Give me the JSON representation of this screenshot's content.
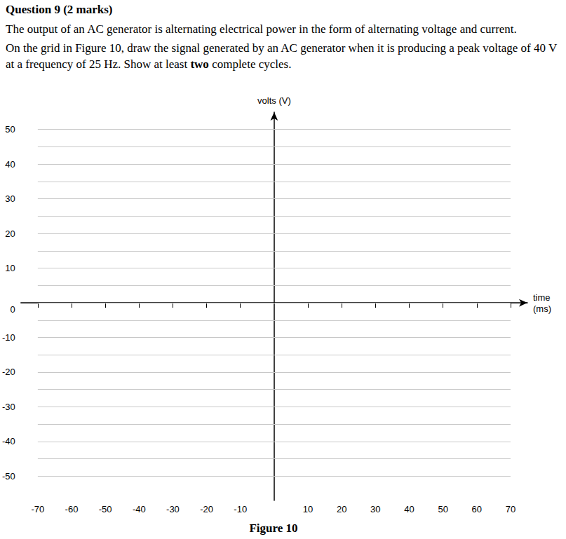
{
  "heading": "Question 9 (2 marks)",
  "paragraphs": [
    [
      {
        "text": "The output of an AC generator is alternating electrical power in the form of alternating voltage and current."
      }
    ],
    [
      {
        "text": "On the grid in Figure 10, draw the signal generated by an AC generator when it is producing a peak voltage of 40 V at a frequency of 25 Hz. Show at least "
      },
      {
        "text": "two",
        "bold": true
      },
      {
        "text": " complete cycles."
      }
    ]
  ],
  "figure_caption": "Figure 10",
  "chart_data": {
    "type": "line",
    "x_label": "time\n(ms)",
    "y_label": "volts (V)",
    "xlim": [
      -75,
      75
    ],
    "xticks": [
      -70,
      -60,
      -50,
      -40,
      -30,
      -20,
      -10,
      10,
      20,
      30,
      40,
      50,
      60,
      70
    ],
    "ylim": [
      -57,
      55
    ],
    "yticks": [
      -50,
      -40,
      -30,
      -20,
      -10,
      0,
      10,
      20,
      30,
      40,
      50
    ],
    "grid": true,
    "series": []
  }
}
